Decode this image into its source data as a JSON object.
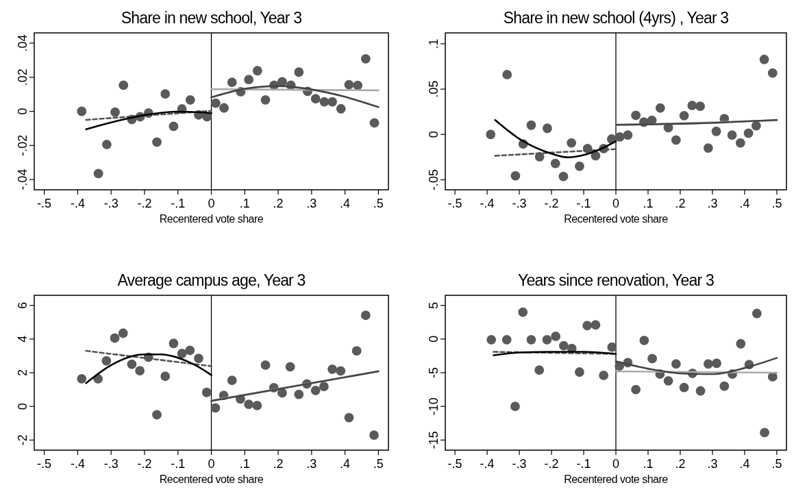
{
  "chart_data": [
    {
      "type": "scatter",
      "title": "Share in new school, Year 3",
      "xlabel": "Recentered vote share",
      "xlim": [
        -0.53,
        0.53
      ],
      "ylim": [
        -0.046,
        0.046
      ],
      "xticks": [
        {
          "value": -0.5,
          "label": "-.5"
        },
        {
          "value": -0.4,
          "label": "-.4"
        },
        {
          "value": -0.3,
          "label": "-.3"
        },
        {
          "value": -0.2,
          "label": "-.2"
        },
        {
          "value": -0.1,
          "label": "-.1"
        },
        {
          "value": 0,
          "label": "0"
        },
        {
          "value": 0.1,
          "label": ".1"
        },
        {
          "value": 0.2,
          "label": ".2"
        },
        {
          "value": 0.3,
          "label": ".3"
        },
        {
          "value": 0.4,
          "label": ".4"
        },
        {
          "value": 0.5,
          "label": ".5"
        }
      ],
      "yticks": [
        {
          "value": -0.04,
          "label": "-.04"
        },
        {
          "value": -0.02,
          "label": "-.02"
        },
        0,
        {
          "value": 0.02,
          "label": ".02"
        },
        {
          "value": 0.04,
          "label": ".04"
        }
      ],
      "ref_lines": [
        {
          "axis": "x",
          "value": 0,
          "color": "#000000"
        }
      ],
      "series": [
        {
          "marker": "circle",
          "color": "#5a5a5a",
          "x": [
            -0.388,
            -0.338,
            -0.313,
            -0.288,
            -0.263,
            -0.238,
            -0.213,
            -0.188,
            -0.163,
            -0.138,
            -0.113,
            -0.088,
            -0.063,
            -0.038,
            -0.013,
            0.013,
            0.038,
            0.062,
            0.088,
            0.112,
            0.138,
            0.162,
            0.188,
            0.212,
            0.238,
            0.262,
            0.288,
            0.312,
            0.338,
            0.362,
            0.388,
            0.412,
            0.438,
            0.462,
            0.488
          ],
          "values": [
            0,
            -0.0365,
            -0.0194,
            -0.0005,
            0.0153,
            -0.0048,
            -0.0032,
            -0.001,
            -0.018,
            0.0102,
            -0.0088,
            0.0014,
            0.0067,
            -0.0021,
            -0.0032,
            0.0048,
            0.002,
            0.017,
            0.0115,
            0.0186,
            0.0238,
            0.0067,
            0.0153,
            0.0173,
            0.0153,
            0.023,
            0.0117,
            0.0074,
            0.0056,
            0.0056,
            0.0015,
            0.0156,
            0.0152,
            0.0308,
            -0.0068
          ]
        },
        {
          "type": "line",
          "line_style": "dashed",
          "color": "#555555",
          "x": [
            -0.375,
            0
          ],
          "values": [
            -0.005,
            0.0003
          ]
        },
        {
          "type": "line",
          "line_style": "solid",
          "color": "#000000",
          "x": [
            -0.375,
            -0.3,
            -0.2,
            -0.1,
            0
          ],
          "values": [
            -0.0105,
            -0.0065,
            -0.0022,
            -0.0002,
            -0.001
          ]
        },
        {
          "type": "line",
          "line_style": "solid",
          "color": "#aaaaaa",
          "x": [
            0,
            0.5
          ],
          "values": [
            0.013,
            0.0123
          ]
        },
        {
          "type": "line",
          "line_style": "solid",
          "color": "#444444",
          "x": [
            0,
            0.1,
            0.2,
            0.3,
            0.4,
            0.5
          ],
          "values": [
            0.0082,
            0.0132,
            0.0148,
            0.0128,
            0.0085,
            0.0025
          ]
        }
      ]
    },
    {
      "type": "scatter",
      "title": "Share in new school (4yrs) , Year 3",
      "xlabel": "Recentered vote share",
      "xlim": [
        -0.53,
        0.53
      ],
      "ylim": [
        -0.061,
        0.112
      ],
      "xticks": [
        {
          "value": -0.5,
          "label": "-.5"
        },
        {
          "value": -0.4,
          "label": "-.4"
        },
        {
          "value": -0.3,
          "label": "-.3"
        },
        {
          "value": -0.2,
          "label": "-.2"
        },
        {
          "value": -0.1,
          "label": "-.1"
        },
        {
          "value": 0,
          "label": "0"
        },
        {
          "value": 0.1,
          "label": ".1"
        },
        {
          "value": 0.2,
          "label": ".2"
        },
        {
          "value": 0.3,
          "label": ".3"
        },
        {
          "value": 0.4,
          "label": ".4"
        },
        {
          "value": 0.5,
          "label": ".5"
        }
      ],
      "yticks": [
        {
          "value": -0.05,
          "label": "-.05"
        },
        0,
        {
          "value": 0.05,
          "label": ".05"
        },
        {
          "value": 0.1,
          "label": ".1"
        }
      ],
      "ref_lines": [
        {
          "axis": "x",
          "value": 0,
          "color": "#000000"
        }
      ],
      "series": [
        {
          "marker": "circle",
          "color": "#5a5a5a",
          "x": [
            -0.389,
            -0.338,
            -0.312,
            -0.288,
            -0.263,
            -0.237,
            -0.213,
            -0.188,
            -0.163,
            -0.138,
            -0.113,
            -0.088,
            -0.063,
            -0.038,
            -0.013,
            0.012,
            0.037,
            0.062,
            0.087,
            0.112,
            0.138,
            0.163,
            0.187,
            0.212,
            0.237,
            0.262,
            0.287,
            0.312,
            0.337,
            0.361,
            0.387,
            0.412,
            0.436,
            0.461,
            0.487
          ],
          "values": [
            0,
            0.066,
            -0.0456,
            -0.0105,
            0.0102,
            -0.0246,
            0.0068,
            -0.032,
            -0.0464,
            -0.0093,
            -0.0351,
            -0.0156,
            -0.0235,
            -0.0156,
            -0.0051,
            -0.0028,
            -0.0006,
            0.021,
            0.0136,
            0.0156,
            0.0292,
            0.0074,
            -0.0062,
            0.0207,
            0.032,
            0.0311,
            -0.015,
            0.0034,
            0.0175,
            -0.0006,
            -0.0093,
            0.0014,
            0.0096,
            0.0827,
            0.0677
          ]
        },
        {
          "type": "line",
          "line_style": "dashed",
          "color": "#555555",
          "x": [
            -0.375,
            0
          ],
          "values": [
            -0.0235,
            -0.0161
          ]
        },
        {
          "type": "line",
          "line_style": "solid",
          "color": "#000000",
          "x": [
            -0.375,
            -0.3,
            -0.2,
            -0.15,
            -0.1,
            -0.05,
            0
          ],
          "values": [
            0.0159,
            -0.0048,
            -0.0212,
            -0.0252,
            -0.0226,
            -0.0164,
            -0.0074
          ]
        },
        {
          "type": "line",
          "line_style": "solid",
          "color": "#aaaaaa",
          "x": [
            0,
            0.5
          ],
          "values": [
            0.0102,
            0.0156
          ]
        },
        {
          "type": "line",
          "line_style": "solid",
          "color": "#444444",
          "x": [
            0,
            0.25,
            0.5
          ],
          "values": [
            0.0108,
            0.0122,
            0.0161
          ]
        }
      ]
    },
    {
      "type": "scatter",
      "title": "Average campus age, Year 3",
      "xlabel": "Recentered vote share",
      "xlim": [
        -0.53,
        0.53
      ],
      "ylim": [
        -2.6,
        6.6
      ],
      "xticks": [
        {
          "value": -0.5,
          "label": "-.5"
        },
        {
          "value": -0.4,
          "label": "-.4"
        },
        {
          "value": -0.3,
          "label": "-.3"
        },
        {
          "value": -0.2,
          "label": "-.2"
        },
        {
          "value": -0.1,
          "label": "-.1"
        },
        {
          "value": 0,
          "label": "0"
        },
        {
          "value": 0.1,
          "label": ".1"
        },
        {
          "value": 0.2,
          "label": ".2"
        },
        {
          "value": 0.3,
          "label": ".3"
        },
        {
          "value": 0.4,
          "label": ".4"
        },
        {
          "value": 0.5,
          "label": ".5"
        }
      ],
      "yticks": [
        -2,
        0,
        2,
        4,
        6
      ],
      "ref_lines": [
        {
          "axis": "x",
          "value": 0,
          "color": "#000000"
        }
      ],
      "series": [
        {
          "marker": "circle",
          "color": "#5a5a5a",
          "x": [
            -0.388,
            -0.339,
            -0.314,
            -0.289,
            -0.264,
            -0.238,
            -0.214,
            -0.188,
            -0.163,
            -0.138,
            -0.113,
            -0.088,
            -0.064,
            -0.038,
            -0.014,
            0.012,
            0.037,
            0.062,
            0.087,
            0.112,
            0.137,
            0.162,
            0.187,
            0.212,
            0.236,
            0.262,
            0.286,
            0.312,
            0.337,
            0.362,
            0.387,
            0.412,
            0.435,
            0.462,
            0.487
          ],
          "values": [
            1.64,
            1.64,
            2.71,
            4.06,
            4.35,
            2.5,
            2.12,
            2.92,
            -0.5,
            1.79,
            3.74,
            3.14,
            3.33,
            2.85,
            0.83,
            -0.09,
            0.65,
            1.55,
            0.44,
            0.12,
            0.05,
            2.45,
            1.11,
            0.8,
            2.35,
            0.71,
            1.33,
            0.95,
            1.18,
            2.21,
            2.11,
            -0.67,
            3.3,
            5.41,
            -1.71
          ]
        },
        {
          "type": "line",
          "line_style": "dashed",
          "color": "#555555",
          "x": [
            -0.375,
            0
          ],
          "values": [
            3.3,
            2.39
          ]
        },
        {
          "type": "line",
          "line_style": "solid",
          "color": "#000000",
          "x": [
            -0.375,
            -0.3,
            -0.25,
            -0.2,
            -0.15,
            -0.1,
            -0.05,
            0
          ],
          "values": [
            1.38,
            2.45,
            2.91,
            3.09,
            3.09,
            2.89,
            2.47,
            1.86
          ]
        },
        {
          "type": "line",
          "line_style": "solid",
          "color": "#aaaaaa",
          "x": [
            0,
            0.5
          ],
          "values": [
            0.35,
            2.09
          ]
        },
        {
          "type": "line",
          "line_style": "solid",
          "color": "#444444",
          "x": [
            0,
            0.5
          ],
          "values": [
            0.32,
            2.08
          ]
        }
      ]
    },
    {
      "type": "scatter",
      "title": "Years since renovation, Year 3",
      "xlabel": "Recentered vote share",
      "xlim": [
        -0.53,
        0.53
      ],
      "ylim": [
        -16.5,
        6.5
      ],
      "xticks": [
        {
          "value": -0.5,
          "label": "-.5"
        },
        {
          "value": -0.4,
          "label": "-.4"
        },
        {
          "value": -0.3,
          "label": "-.3"
        },
        {
          "value": -0.2,
          "label": "-.2"
        },
        {
          "value": -0.1,
          "label": "-.1"
        },
        {
          "value": 0,
          "label": "0"
        },
        {
          "value": 0.1,
          "label": ".1"
        },
        {
          "value": 0.2,
          "label": ".2"
        },
        {
          "value": 0.3,
          "label": ".3"
        },
        {
          "value": 0.4,
          "label": ".4"
        },
        {
          "value": 0.5,
          "label": ".5"
        }
      ],
      "yticks": [
        -15,
        -10,
        -5,
        0,
        5
      ],
      "ref_lines": [
        {
          "axis": "x",
          "value": 0,
          "color": "#000000"
        }
      ],
      "series": [
        {
          "marker": "circle",
          "color": "#5a5a5a",
          "x": [
            -0.387,
            -0.339,
            -0.313,
            -0.289,
            -0.263,
            -0.238,
            -0.214,
            -0.187,
            -0.162,
            -0.137,
            -0.113,
            -0.089,
            -0.063,
            -0.038,
            -0.012,
            0.011,
            0.037,
            0.062,
            0.088,
            0.113,
            0.137,
            0.163,
            0.187,
            0.212,
            0.238,
            0.263,
            0.287,
            0.313,
            0.337,
            0.362,
            0.388,
            0.414,
            0.438,
            0.462,
            0.487
          ],
          "values": [
            -0.1,
            -0.1,
            -10,
            4,
            -0.1,
            -4.6,
            -0.1,
            0.4,
            -1,
            -1.4,
            -4.9,
            2,
            2.1,
            -5.4,
            -1.2,
            -4,
            -3.5,
            -7.5,
            -0.2,
            -2.9,
            -5.2,
            -6.2,
            -3.7,
            -7.2,
            -5.1,
            -7.7,
            -3.7,
            -3.6,
            -7,
            -5.2,
            -0.7,
            -3.8,
            3.8,
            -13.9,
            -5.6
          ]
        },
        {
          "type": "line",
          "line_style": "dashed",
          "color": "#555555",
          "x": [
            -0.38,
            0
          ],
          "values": [
            -1.9,
            -2.2
          ]
        },
        {
          "type": "line",
          "line_style": "solid",
          "color": "#000000",
          "x": [
            -0.38,
            -0.3,
            -0.2,
            -0.1,
            0
          ],
          "values": [
            -2.4,
            -2,
            -1.9,
            -1.9,
            -2.2
          ]
        },
        {
          "type": "line",
          "line_style": "solid",
          "color": "#aaaaaa",
          "x": [
            0,
            0.5
          ],
          "values": [
            -4.8,
            -5
          ]
        },
        {
          "type": "line",
          "line_style": "solid",
          "color": "#444444",
          "x": [
            0,
            0.1,
            0.2,
            0.3,
            0.4,
            0.5
          ],
          "values": [
            -3.3,
            -4.4,
            -5.1,
            -5.2,
            -4.3,
            -2.8
          ]
        }
      ]
    }
  ]
}
